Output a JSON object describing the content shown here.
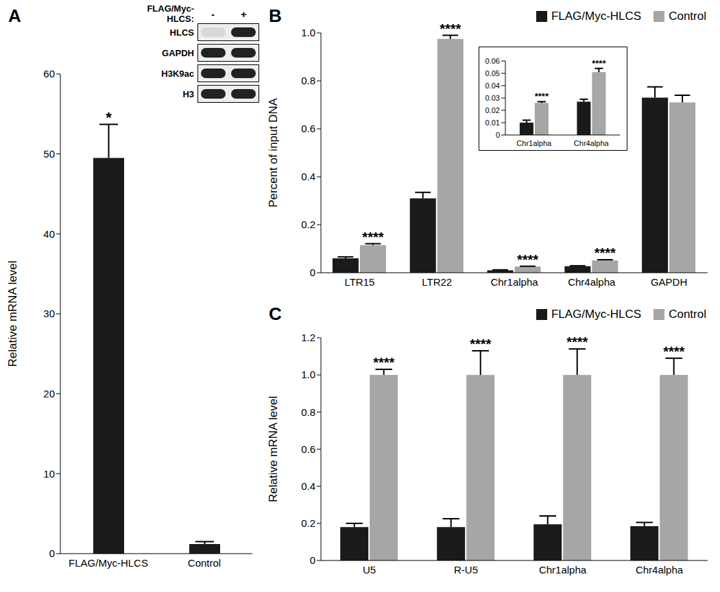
{
  "chart_data": [
    {
      "panel": "A",
      "type": "bar",
      "y_label": "Relative mRNA level",
      "categories": [
        "FLAG/Myc-HLCS",
        "Control"
      ],
      "values": [
        49.5,
        1.2
      ],
      "errors": [
        4.2,
        0.3
      ],
      "significance": [
        "*",
        null
      ],
      "color": "#1a1a1a",
      "ylim": [
        0,
        60
      ],
      "yticks": [
        0,
        10,
        20,
        30,
        40,
        50,
        60
      ],
      "blot": {
        "header": "FLAG/Myc-HLCS:",
        "lanes": [
          "-",
          "+"
        ],
        "rows": [
          "HLCS",
          "GAPDH",
          "H3K9ac",
          "H3"
        ]
      }
    },
    {
      "panel": "B",
      "type": "bar",
      "y_label": "Percent of input DNA",
      "categories": [
        "LTR15",
        "LTR22",
        "Chr1alpha",
        "Chr4alpha",
        "GAPDH"
      ],
      "series": [
        {
          "name": "FLAG/Myc-HLCS",
          "color": "#1a1a1a",
          "values": [
            0.06,
            0.31,
            0.01,
            0.027,
            0.73
          ],
          "errors": [
            0.006,
            0.025,
            0.002,
            0.002,
            0.045
          ]
        },
        {
          "name": "Control",
          "color": "#a6a6a6",
          "values": [
            0.115,
            0.975,
            0.026,
            0.051,
            0.71
          ],
          "errors": [
            0.006,
            0.015,
            0.001,
            0.003,
            0.03
          ],
          "significance": [
            "****",
            "****",
            "****",
            "****",
            null
          ]
        }
      ],
      "ylim": [
        0,
        1
      ],
      "yticks": [
        0,
        0.2,
        0.4,
        0.6,
        0.8,
        {
          "value": 1,
          "label": "1.0"
        }
      ],
      "legend": "top right"
    },
    {
      "type": "bar",
      "categories": [
        "Chr1alpha",
        "Chr4alpha"
      ],
      "series": [
        {
          "color": "#1a1a1a",
          "values": [
            0.01,
            0.027
          ],
          "errors": [
            0.002,
            0.002
          ]
        },
        {
          "color": "#a6a6a6",
          "values": [
            0.026,
            0.051
          ],
          "errors": [
            0.001,
            0.003
          ],
          "significance": [
            "****",
            "****"
          ]
        }
      ],
      "ylim": [
        0,
        0.06
      ],
      "yticks": [
        0,
        0.01,
        0.02,
        0.03,
        0.04,
        0.05,
        0.06
      ]
    },
    {
      "panel": "C",
      "type": "bar",
      "y_label": "Relative mRNA level",
      "categories": [
        "U5",
        "R-U5",
        "Chr1alpha",
        "Chr4alpha"
      ],
      "series": [
        {
          "name": "FLAG/Myc-HLCS",
          "color": "#1a1a1a",
          "values": [
            0.18,
            0.18,
            0.195,
            0.185
          ],
          "errors": [
            0.02,
            0.045,
            0.045,
            0.02
          ]
        },
        {
          "name": "Control",
          "color": "#a6a6a6",
          "values": [
            1.0,
            1.0,
            1.0,
            1.0
          ],
          "errors": [
            0.03,
            0.13,
            0.14,
            0.09
          ],
          "significance": [
            "****",
            "****",
            "****",
            "****"
          ]
        }
      ],
      "ylim": [
        0,
        1.2
      ],
      "yticks": [
        0,
        0.2,
        0.4,
        0.6,
        0.8,
        {
          "value": 1,
          "label": "1.0"
        },
        1.2
      ],
      "legend": "top right"
    }
  ]
}
